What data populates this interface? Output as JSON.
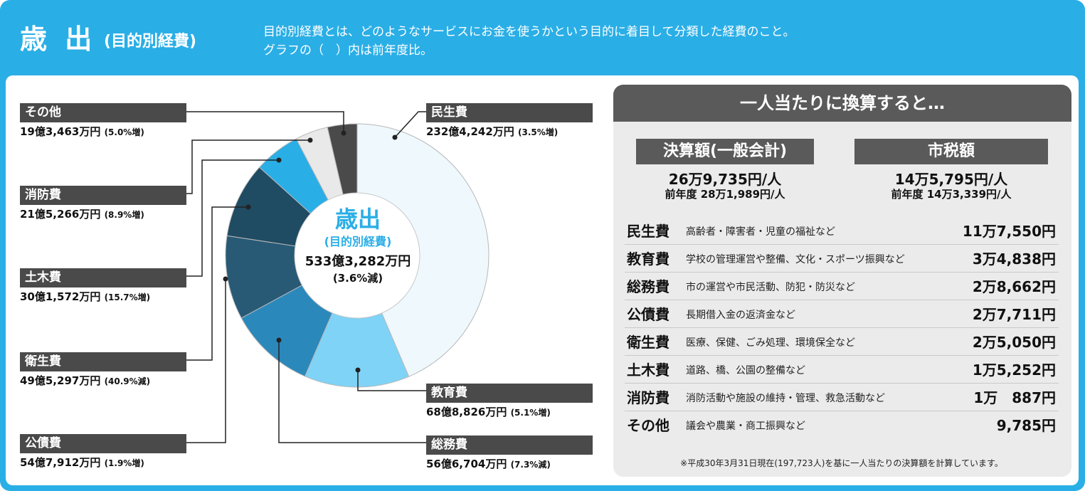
{
  "header": {
    "title": "歳 出",
    "subtitle": "(目的別経費)",
    "desc_line1": "目的別経費とは、どのようなサービスにお金を使うかという目的に着目して分類した経費のこと。",
    "desc_line2": "グラフの（　）内は前年度比。"
  },
  "chart_data": {
    "type": "pie",
    "center_title": "歳出",
    "center_subtitle": "(目的別経費)",
    "total": "533億3,282万円",
    "total_change": "(3.6%減)",
    "slices": [
      {
        "key": "minsei",
        "name": "民生費",
        "value": 232.4242,
        "amount": "232億4,242万円",
        "change": "(3.5%増)",
        "color": "#eef8fd"
      },
      {
        "key": "kyoiku",
        "name": "教育費",
        "value": 68.8826,
        "amount": "68億8,826万円",
        "change": "(5.1%増)",
        "color": "#7fd3f6"
      },
      {
        "key": "somu",
        "name": "総務費",
        "value": 56.6704,
        "amount": "56億6,704万円",
        "change": "(7.3%減)",
        "color": "#2b88bb"
      },
      {
        "key": "kosai",
        "name": "公債費",
        "value": 54.7912,
        "amount": "54億7,912万円",
        "change": "(1.9%増)",
        "color": "#285a76"
      },
      {
        "key": "eisei",
        "name": "衛生費",
        "value": 49.5297,
        "amount": "49億5,297万円",
        "change": "(40.9%減)",
        "color": "#1f4b63"
      },
      {
        "key": "doboku",
        "name": "土木費",
        "value": 30.1572,
        "amount": "30億1,572万円",
        "change": "(15.7%増)",
        "color": "#2aaee6"
      },
      {
        "key": "shobo",
        "name": "消防費",
        "value": 21.5266,
        "amount": "21億5,266万円",
        "change": "(8.9%増)",
        "color": "#e9e9e9"
      },
      {
        "key": "sonota",
        "name": "その他",
        "value": 19.3463,
        "amount": "19億3,463万円",
        "change": "(5.0%増)",
        "color": "#4a4a4a"
      }
    ]
  },
  "per_capita": {
    "title": "一人当たりに換算すると…",
    "settlement": {
      "label": "決算額(一般会計)",
      "value": "26万9,735円/人",
      "prev": "前年度 28万1,989円/人"
    },
    "city_tax": {
      "label": "市税額",
      "value": "14万5,795円/人",
      "prev": "前年度 14万3,339円/人"
    },
    "rows": [
      {
        "name": "民生費",
        "desc": "高齢者・障害者・児童の福祉など",
        "amount": "11万7,550円"
      },
      {
        "name": "教育費",
        "desc": "学校の管理運営や整備、文化・スポーツ振興など",
        "amount": "3万4,838円"
      },
      {
        "name": "総務費",
        "desc": "市の運営や市民活動、防犯・防災など",
        "amount": "2万8,662円"
      },
      {
        "name": "公債費",
        "desc": "長期借入金の返済金など",
        "amount": "2万7,711円"
      },
      {
        "name": "衛生費",
        "desc": "医療、保健、ごみ処理、環境保全など",
        "amount": "2万5,050円"
      },
      {
        "name": "土木費",
        "desc": "道路、橋、公園の整備など",
        "amount": "1万5,252円"
      },
      {
        "name": "消防費",
        "desc": "消防活動や施設の維持・管理、救急活動など",
        "amount": "1万　887円"
      },
      {
        "name": "その他",
        "desc": "議会や農業・商工振興など",
        "amount": "9,785円"
      }
    ],
    "note": "※平成30年3月31日現在(197,723人)を基に一人当たりの決算額を計算しています。"
  }
}
